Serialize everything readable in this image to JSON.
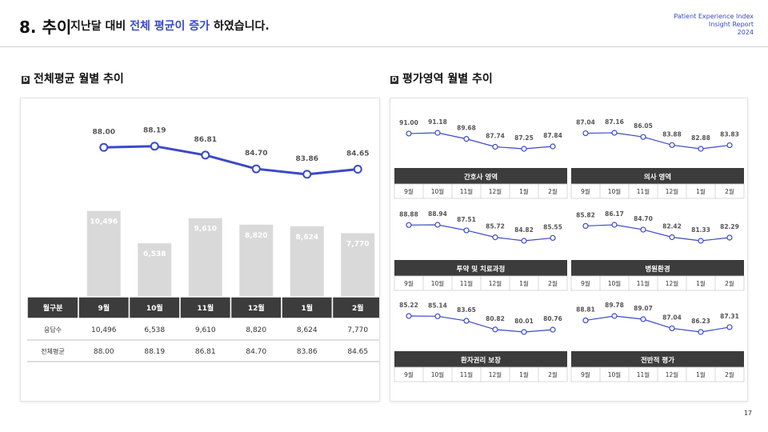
{
  "header": {
    "section_number": "8. 추이",
    "subtitle_pre": "지난달 대비 ",
    "subtitle_highlight": "전체 평균이 증가",
    "subtitle_post": " 하였습니다.",
    "brand_line1": "Patient Experience Index",
    "brand_line2": "Insight Report",
    "brand_line3": "2024"
  },
  "left_section": {
    "marker": "D",
    "title": "전체평균 월별 추이"
  },
  "right_section": {
    "marker": "D",
    "title": "평가영역 월별 추이"
  },
  "colors": {
    "accent": "#3a49c8",
    "bar": "#d9d9d9",
    "table_header": "#3c3c3c"
  },
  "chart_data": [
    {
      "type": "bar+line",
      "categories": [
        "9월",
        "10월",
        "11월",
        "12월",
        "1월",
        "2월"
      ],
      "series": [
        {
          "name": "응답수",
          "type": "bar",
          "values": [
            10496,
            6538,
            9610,
            8820,
            8624,
            7770
          ],
          "labels": [
            "10,496",
            "6,538",
            "9,610",
            "8,820",
            "8,624",
            "7,770"
          ]
        },
        {
          "name": "전체평균",
          "type": "line",
          "values": [
            88.0,
            88.19,
            86.81,
            84.7,
            83.86,
            84.65
          ],
          "labels": [
            "88.00",
            "88.19",
            "86.81",
            "84.70",
            "83.86",
            "84.65"
          ]
        }
      ],
      "table": {
        "header": [
          "월구분",
          "9월",
          "10월",
          "11월",
          "12월",
          "1월",
          "2월"
        ],
        "rows": [
          [
            "응답수",
            "10,496",
            "6,538",
            "9,610",
            "8,820",
            "8,624",
            "7,770"
          ],
          [
            "전체평균",
            "88.00",
            "88.19",
            "86.81",
            "84.70",
            "83.86",
            "84.65"
          ]
        ]
      }
    },
    {
      "type": "line",
      "title": "간호사 영역",
      "categories": [
        "9월",
        "10월",
        "11월",
        "12월",
        "1월",
        "2월"
      ],
      "values": [
        91.0,
        91.18,
        89.68,
        87.74,
        87.25,
        87.84
      ],
      "labels": [
        "91.00",
        "91.18",
        "89.68",
        "87.74",
        "87.25",
        "87.84"
      ]
    },
    {
      "type": "line",
      "title": "의사 영역",
      "categories": [
        "9월",
        "10월",
        "11월",
        "12월",
        "1월",
        "2월"
      ],
      "values": [
        87.04,
        87.16,
        86.05,
        83.88,
        82.88,
        83.83
      ],
      "labels": [
        "87.04",
        "87.16",
        "86.05",
        "83.88",
        "82.88",
        "83.83"
      ]
    },
    {
      "type": "line",
      "title": "투약 및 치료과정",
      "categories": [
        "9월",
        "10월",
        "11월",
        "12월",
        "1월",
        "2월"
      ],
      "values": [
        88.88,
        88.94,
        87.51,
        85.72,
        84.82,
        85.55
      ],
      "labels": [
        "88.88",
        "88.94",
        "87.51",
        "85.72",
        "84.82",
        "85.55"
      ]
    },
    {
      "type": "line",
      "title": "병원환경",
      "categories": [
        "9월",
        "10월",
        "11월",
        "12월",
        "1월",
        "2월"
      ],
      "values": [
        85.82,
        86.17,
        84.7,
        82.42,
        81.33,
        82.29
      ],
      "labels": [
        "85.82",
        "86.17",
        "84.70",
        "82.42",
        "81.33",
        "82.29"
      ]
    },
    {
      "type": "line",
      "title": "환자권리 보장",
      "categories": [
        "9월",
        "10월",
        "11월",
        "12월",
        "1월",
        "2월"
      ],
      "values": [
        85.22,
        85.14,
        83.65,
        80.82,
        80.01,
        80.76
      ],
      "labels": [
        "85.22",
        "85.14",
        "83.65",
        "80.82",
        "80.01",
        "80.76"
      ]
    },
    {
      "type": "line",
      "title": "전반적 평가",
      "categories": [
        "9월",
        "10월",
        "11월",
        "12월",
        "1월",
        "2월"
      ],
      "values": [
        88.81,
        89.78,
        89.07,
        87.04,
        86.23,
        87.31
      ],
      "labels": [
        "88.81",
        "89.78",
        "89.07",
        "87.04",
        "86.23",
        "87.31"
      ]
    }
  ],
  "page_number": "17"
}
